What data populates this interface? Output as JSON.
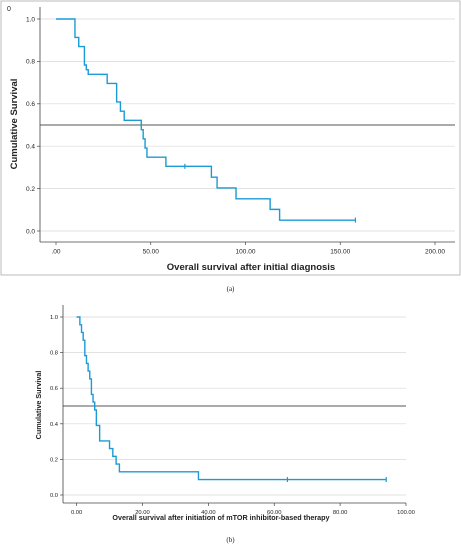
{
  "chart_data": [
    {
      "type": "line",
      "id": "a",
      "marker": "0",
      "xlabel": "Overall survival after initial diagnosis",
      "ylabel": "Cumulative Survival",
      "xlim": [
        0,
        200
      ],
      "ylim": [
        0,
        1.0
      ],
      "xticks": [
        0,
        50,
        100,
        150,
        200
      ],
      "xtick_labels": [
        ".00",
        "50.00",
        "100.00",
        "150.00",
        "200.00"
      ],
      "yticks": [
        0.0,
        0.2,
        0.4,
        0.6,
        0.8,
        1.0
      ],
      "ytick_labels": [
        "0.0",
        "0.2",
        "0.4",
        "0.6",
        "0.8",
        "1.0"
      ],
      "grid": "horizontal",
      "reference_line": 0.5,
      "color": "#1c9ad6",
      "series": [
        {
          "x": [
            0,
            9,
            10,
            12,
            15,
            16,
            17,
            27,
            32,
            34,
            36,
            45,
            46,
            47,
            48,
            50,
            58,
            82,
            85,
            95,
            113,
            118,
            158
          ],
          "y": [
            1.0,
            1.0,
            0.913,
            0.87,
            0.783,
            0.761,
            0.739,
            0.696,
            0.609,
            0.565,
            0.522,
            0.478,
            0.435,
            0.391,
            0.348,
            0.348,
            0.305,
            0.254,
            0.203,
            0.152,
            0.102,
            0.051,
            0.051
          ]
        }
      ],
      "censored": [
        {
          "x": 68,
          "y": 0.305
        },
        {
          "x": 158,
          "y": 0.051
        }
      ]
    },
    {
      "type": "line",
      "id": "b",
      "xlabel": "Overall survival after initiation of mTOR inhibitor-based therapy",
      "ylabel": "Cumulative Survival",
      "xlim": [
        -2,
        100
      ],
      "ylim": [
        0,
        1.0
      ],
      "xticks": [
        0,
        20,
        40,
        60,
        80,
        100
      ],
      "xtick_labels": [
        "0.00",
        "20.00",
        "40.00",
        "60.00",
        "80.00",
        "100.00"
      ],
      "yticks": [
        0.0,
        0.2,
        0.4,
        0.6,
        0.8,
        1.0
      ],
      "ytick_labels": [
        "0.0",
        "0.2",
        "0.4",
        "0.6",
        "0.8",
        "1.0"
      ],
      "grid": "horizontal",
      "reference_line": 0.5,
      "color": "#1c9ad6",
      "series": [
        {
          "x": [
            0,
            1,
            1.5,
            2,
            2.5,
            3,
            3.5,
            4,
            4.5,
            5,
            5.5,
            6,
            7,
            10,
            11,
            12,
            13,
            37,
            94
          ],
          "y": [
            1.0,
            0.956,
            0.913,
            0.87,
            0.783,
            0.739,
            0.696,
            0.652,
            0.565,
            0.522,
            0.478,
            0.391,
            0.304,
            0.261,
            0.217,
            0.174,
            0.13,
            0.087,
            0.087
          ]
        }
      ],
      "censored": [
        {
          "x": 64,
          "y": 0.087
        },
        {
          "x": 94,
          "y": 0.087
        }
      ]
    }
  ],
  "captions": {
    "a": "(a)",
    "b": "(b)"
  }
}
